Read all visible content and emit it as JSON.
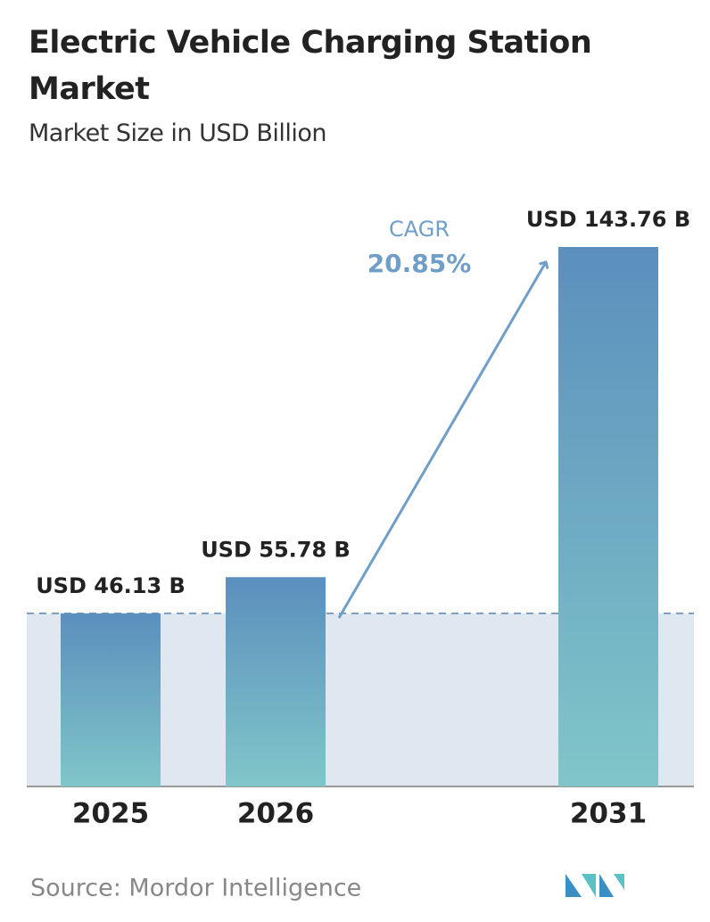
{
  "chart_data": {
    "type": "bar",
    "title": "Electric Vehicle Charging Station Market",
    "subtitle": "Market Size in USD Billion",
    "categories": [
      "2025",
      "2026",
      "2031"
    ],
    "values": [
      46.13,
      55.78,
      143.76
    ],
    "value_labels": [
      "USD 46.13 B",
      "USD 55.78 B",
      "USD 143.76 B"
    ],
    "gradient": [
      "#5b8fbd",
      "#80c6c9"
    ],
    "annotation": {
      "label": "CAGR",
      "value": "20.85%"
    },
    "source": "Source: Mordor Intelligence"
  }
}
